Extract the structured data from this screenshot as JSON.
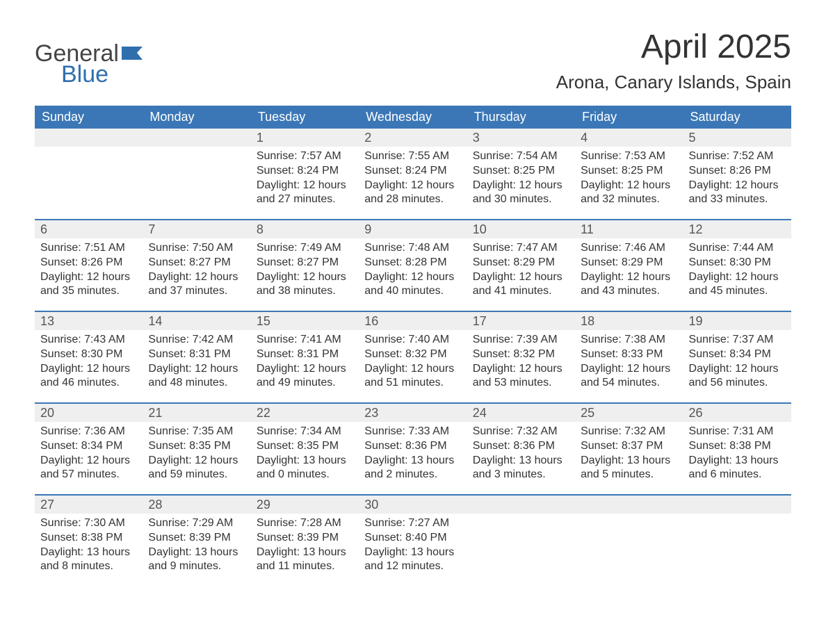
{
  "logo": {
    "line1": "General",
    "line2": "Blue"
  },
  "title": "April 2025",
  "location": "Arona, Canary Islands, Spain",
  "colors": {
    "header_bg": "#3b77b6",
    "header_text": "#ffffff",
    "daynum_bg": "#efefef",
    "week_border": "#3b77b6",
    "body_bg": "#ffffff",
    "text": "#333333",
    "logo_gray": "#444444",
    "logo_blue": "#2f6fae"
  },
  "day_names": [
    "Sunday",
    "Monday",
    "Tuesday",
    "Wednesday",
    "Thursday",
    "Friday",
    "Saturday"
  ],
  "weeks": [
    [
      {
        "blank": true
      },
      {
        "blank": true
      },
      {
        "day": "1",
        "sunrise": "Sunrise: 7:57 AM",
        "sunset": "Sunset: 8:24 PM",
        "daylight": "Daylight: 12 hours and 27 minutes."
      },
      {
        "day": "2",
        "sunrise": "Sunrise: 7:55 AM",
        "sunset": "Sunset: 8:24 PM",
        "daylight": "Daylight: 12 hours and 28 minutes."
      },
      {
        "day": "3",
        "sunrise": "Sunrise: 7:54 AM",
        "sunset": "Sunset: 8:25 PM",
        "daylight": "Daylight: 12 hours and 30 minutes."
      },
      {
        "day": "4",
        "sunrise": "Sunrise: 7:53 AM",
        "sunset": "Sunset: 8:25 PM",
        "daylight": "Daylight: 12 hours and 32 minutes."
      },
      {
        "day": "5",
        "sunrise": "Sunrise: 7:52 AM",
        "sunset": "Sunset: 8:26 PM",
        "daylight": "Daylight: 12 hours and 33 minutes."
      }
    ],
    [
      {
        "day": "6",
        "sunrise": "Sunrise: 7:51 AM",
        "sunset": "Sunset: 8:26 PM",
        "daylight": "Daylight: 12 hours and 35 minutes."
      },
      {
        "day": "7",
        "sunrise": "Sunrise: 7:50 AM",
        "sunset": "Sunset: 8:27 PM",
        "daylight": "Daylight: 12 hours and 37 minutes."
      },
      {
        "day": "8",
        "sunrise": "Sunrise: 7:49 AM",
        "sunset": "Sunset: 8:27 PM",
        "daylight": "Daylight: 12 hours and 38 minutes."
      },
      {
        "day": "9",
        "sunrise": "Sunrise: 7:48 AM",
        "sunset": "Sunset: 8:28 PM",
        "daylight": "Daylight: 12 hours and 40 minutes."
      },
      {
        "day": "10",
        "sunrise": "Sunrise: 7:47 AM",
        "sunset": "Sunset: 8:29 PM",
        "daylight": "Daylight: 12 hours and 41 minutes."
      },
      {
        "day": "11",
        "sunrise": "Sunrise: 7:46 AM",
        "sunset": "Sunset: 8:29 PM",
        "daylight": "Daylight: 12 hours and 43 minutes."
      },
      {
        "day": "12",
        "sunrise": "Sunrise: 7:44 AM",
        "sunset": "Sunset: 8:30 PM",
        "daylight": "Daylight: 12 hours and 45 minutes."
      }
    ],
    [
      {
        "day": "13",
        "sunrise": "Sunrise: 7:43 AM",
        "sunset": "Sunset: 8:30 PM",
        "daylight": "Daylight: 12 hours and 46 minutes."
      },
      {
        "day": "14",
        "sunrise": "Sunrise: 7:42 AM",
        "sunset": "Sunset: 8:31 PM",
        "daylight": "Daylight: 12 hours and 48 minutes."
      },
      {
        "day": "15",
        "sunrise": "Sunrise: 7:41 AM",
        "sunset": "Sunset: 8:31 PM",
        "daylight": "Daylight: 12 hours and 49 minutes."
      },
      {
        "day": "16",
        "sunrise": "Sunrise: 7:40 AM",
        "sunset": "Sunset: 8:32 PM",
        "daylight": "Daylight: 12 hours and 51 minutes."
      },
      {
        "day": "17",
        "sunrise": "Sunrise: 7:39 AM",
        "sunset": "Sunset: 8:32 PM",
        "daylight": "Daylight: 12 hours and 53 minutes."
      },
      {
        "day": "18",
        "sunrise": "Sunrise: 7:38 AM",
        "sunset": "Sunset: 8:33 PM",
        "daylight": "Daylight: 12 hours and 54 minutes."
      },
      {
        "day": "19",
        "sunrise": "Sunrise: 7:37 AM",
        "sunset": "Sunset: 8:34 PM",
        "daylight": "Daylight: 12 hours and 56 minutes."
      }
    ],
    [
      {
        "day": "20",
        "sunrise": "Sunrise: 7:36 AM",
        "sunset": "Sunset: 8:34 PM",
        "daylight": "Daylight: 12 hours and 57 minutes."
      },
      {
        "day": "21",
        "sunrise": "Sunrise: 7:35 AM",
        "sunset": "Sunset: 8:35 PM",
        "daylight": "Daylight: 12 hours and 59 minutes."
      },
      {
        "day": "22",
        "sunrise": "Sunrise: 7:34 AM",
        "sunset": "Sunset: 8:35 PM",
        "daylight": "Daylight: 13 hours and 0 minutes."
      },
      {
        "day": "23",
        "sunrise": "Sunrise: 7:33 AM",
        "sunset": "Sunset: 8:36 PM",
        "daylight": "Daylight: 13 hours and 2 minutes."
      },
      {
        "day": "24",
        "sunrise": "Sunrise: 7:32 AM",
        "sunset": "Sunset: 8:36 PM",
        "daylight": "Daylight: 13 hours and 3 minutes."
      },
      {
        "day": "25",
        "sunrise": "Sunrise: 7:32 AM",
        "sunset": "Sunset: 8:37 PM",
        "daylight": "Daylight: 13 hours and 5 minutes."
      },
      {
        "day": "26",
        "sunrise": "Sunrise: 7:31 AM",
        "sunset": "Sunset: 8:38 PM",
        "daylight": "Daylight: 13 hours and 6 minutes."
      }
    ],
    [
      {
        "day": "27",
        "sunrise": "Sunrise: 7:30 AM",
        "sunset": "Sunset: 8:38 PM",
        "daylight": "Daylight: 13 hours and 8 minutes."
      },
      {
        "day": "28",
        "sunrise": "Sunrise: 7:29 AM",
        "sunset": "Sunset: 8:39 PM",
        "daylight": "Daylight: 13 hours and 9 minutes."
      },
      {
        "day": "29",
        "sunrise": "Sunrise: 7:28 AM",
        "sunset": "Sunset: 8:39 PM",
        "daylight": "Daylight: 13 hours and 11 minutes."
      },
      {
        "day": "30",
        "sunrise": "Sunrise: 7:27 AM",
        "sunset": "Sunset: 8:40 PM",
        "daylight": "Daylight: 13 hours and 12 minutes."
      },
      {
        "blank": true
      },
      {
        "blank": true
      },
      {
        "blank": true
      }
    ]
  ]
}
